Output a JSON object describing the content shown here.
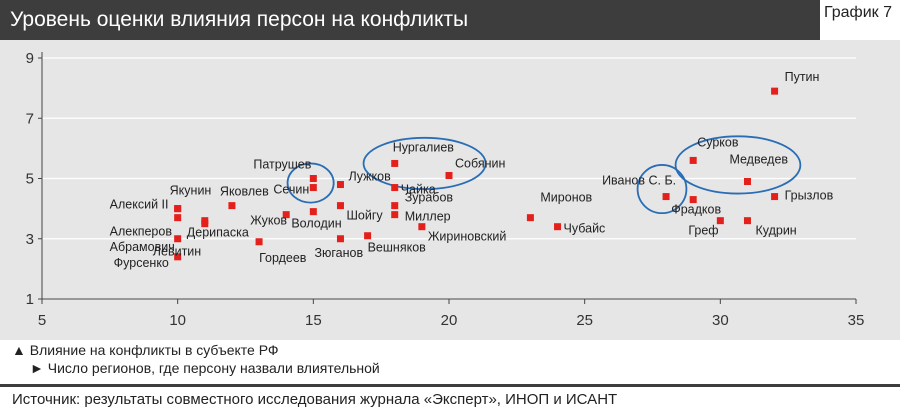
{
  "header": {
    "title": "Уровень оценки влияния персон на конфликты",
    "graph_label": "График 7"
  },
  "legend": {
    "x_note": "Влияние на конфликты в субъекте РФ",
    "y_note": "Число регионов, где персону назвали влиятельной",
    "x_marker": "▲",
    "y_marker": "►"
  },
  "footer": {
    "source": "Источник: результаты совместного исследования журнала «Эксперт», ИНОП и ИСАНТ"
  },
  "chart_data": {
    "type": "scatter",
    "title": "Уровень оценки влияния персон на конфликты",
    "xlabel": "",
    "ylabel": "",
    "xlim": [
      5,
      35
    ],
    "ylim": [
      1,
      9
    ],
    "xticks": [
      5,
      10,
      15,
      20,
      25,
      30,
      35
    ],
    "yticks": [
      1,
      3,
      5,
      7,
      9
    ],
    "grid": "horizontal",
    "marker_color": "#e3201b",
    "circle_color": "#2a6db5",
    "points": [
      {
        "name": "Путин",
        "x": 32,
        "y": 7.9
      },
      {
        "name": "Сурков",
        "x": 29,
        "y": 5.6
      },
      {
        "name": "Медведев",
        "x": 31,
        "y": 4.9
      },
      {
        "name": "Грызлов",
        "x": 32,
        "y": 4.4
      },
      {
        "name": "Фрадков",
        "x": 29,
        "y": 4.3
      },
      {
        "name": "Иванов С. Б.",
        "x": 28,
        "y": 4.4
      },
      {
        "name": "Греф",
        "x": 30,
        "y": 3.6
      },
      {
        "name": "Кудрин",
        "x": 31,
        "y": 3.6
      },
      {
        "name": "Миронов",
        "x": 23,
        "y": 3.7
      },
      {
        "name": "Чубайс",
        "x": 24,
        "y": 3.4
      },
      {
        "name": "Нургалиев",
        "x": 18,
        "y": 5.5
      },
      {
        "name": "Собянин",
        "x": 20,
        "y": 5.1
      },
      {
        "name": "Чайка",
        "x": 18,
        "y": 4.7
      },
      {
        "name": "Зурабов",
        "x": 18,
        "y": 4.1
      },
      {
        "name": "Миллер",
        "x": 18,
        "y": 3.8
      },
      {
        "name": "Жириновский",
        "x": 19,
        "y": 3.4
      },
      {
        "name": "Вешняков",
        "x": 17,
        "y": 3.1
      },
      {
        "name": "Зюганов",
        "x": 16,
        "y": 3.0
      },
      {
        "name": "Шойгу",
        "x": 16,
        "y": 4.1
      },
      {
        "name": "Лужков",
        "x": 16,
        "y": 4.8
      },
      {
        "name": "Патрушев",
        "x": 15,
        "y": 5.0
      },
      {
        "name": "Сечин",
        "x": 15,
        "y": 4.7
      },
      {
        "name": "Володин",
        "x": 15,
        "y": 3.9
      },
      {
        "name": "Жуков",
        "x": 14,
        "y": 3.8
      },
      {
        "name": "Гордеев",
        "x": 13,
        "y": 2.9
      },
      {
        "name": "Яковлев",
        "x": 12,
        "y": 4.1
      },
      {
        "name": "Левитин",
        "x": 11,
        "y": 3.5
      },
      {
        "name": "Дерипаска",
        "x": 11,
        "y": 3.6
      },
      {
        "name": "Якунин",
        "x": 10,
        "y": 4.0
      },
      {
        "name": "Алексий II",
        "x": 10,
        "y": 4.0
      },
      {
        "name": "Алекперов",
        "x": 10,
        "y": 3.7
      },
      {
        "name": "Абрамович",
        "x": 10,
        "y": 3.0
      },
      {
        "name": "Фурсенко",
        "x": 10,
        "y": 2.4
      }
    ],
    "highlight_circles": [
      {
        "members": [
          "Патрушев",
          "Сечин"
        ],
        "cx": 14.9,
        "cy": 4.85,
        "rx": 0.85,
        "ry": 0.65
      },
      {
        "members": [
          "Нургалиев",
          "Собянин"
        ],
        "cx": 19.1,
        "cy": 5.5,
        "rx": 2.25,
        "ry": 0.85
      },
      {
        "members": [
          "Иванов С. Б."
        ],
        "cx": 27.85,
        "cy": 4.65,
        "rx": 0.9,
        "ry": 0.8
      },
      {
        "members": [
          "Сурков",
          "Медведев"
        ],
        "cx": 30.65,
        "cy": 5.45,
        "rx": 2.3,
        "ry": 0.95
      }
    ]
  }
}
